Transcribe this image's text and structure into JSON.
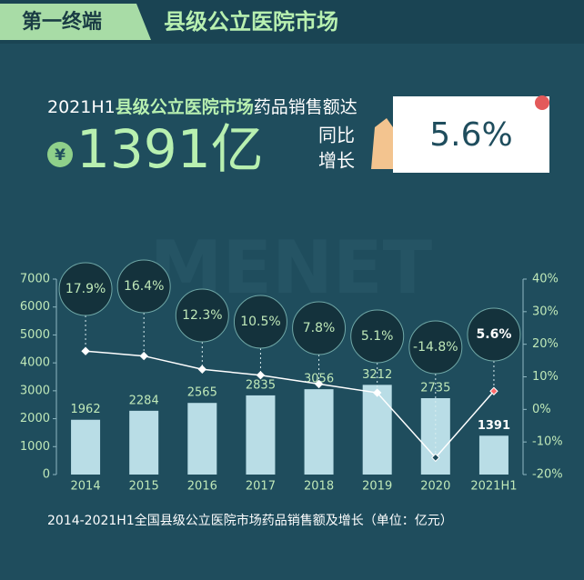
{
  "header": {
    "tag": "第一终端",
    "title": "县级公立医院市场"
  },
  "headline": {
    "prefix": "2021H1",
    "highlight": "县级公立医院市场",
    "suffix": "药品销售额达",
    "currency": "¥",
    "amount": "1391亿",
    "yoy_line1": "同比",
    "yoy_line2": "增长",
    "yoy_value": "5.6%"
  },
  "watermark": "MENET",
  "chart_data": {
    "type": "bar-line",
    "caption": "2014-2021H1全国县级公立医院市场药品销售额及增长（单位：亿元）",
    "categories": [
      "2014",
      "2015",
      "2016",
      "2017",
      "2018",
      "2019",
      "2020",
      "2021H1"
    ],
    "series": [
      {
        "name": "药品销售额",
        "type": "bar",
        "color": "#b9dde6",
        "values": [
          1962,
          2284,
          2565,
          2835,
          3056,
          3212,
          2735,
          1391
        ]
      },
      {
        "name": "增长",
        "type": "line",
        "axis": "y2",
        "color": "#ffffff",
        "values": [
          17.9,
          16.4,
          12.3,
          10.5,
          7.8,
          5.1,
          -14.8,
          5.6
        ],
        "value_labels": [
          "17.9%",
          "16.4%",
          "12.3%",
          "10.5%",
          "7.8%",
          "5.1%",
          "-14.8%",
          "5.6%"
        ]
      }
    ],
    "ylim": [
      0,
      7000
    ],
    "yticks": [
      0,
      1000,
      2000,
      3000,
      4000,
      5000,
      6000,
      7000
    ],
    "y2lim": [
      -20,
      40
    ],
    "y2ticks": [
      {
        "value": -20,
        "label": "-20%"
      },
      {
        "value": -10,
        "label": "-10%"
      },
      {
        "value": 0,
        "label": "0%"
      },
      {
        "value": 10,
        "label": "10%"
      },
      {
        "value": 20,
        "label": "20%"
      },
      {
        "value": 30,
        "label": "30%"
      },
      {
        "value": 40,
        "label": "40%"
      }
    ]
  }
}
